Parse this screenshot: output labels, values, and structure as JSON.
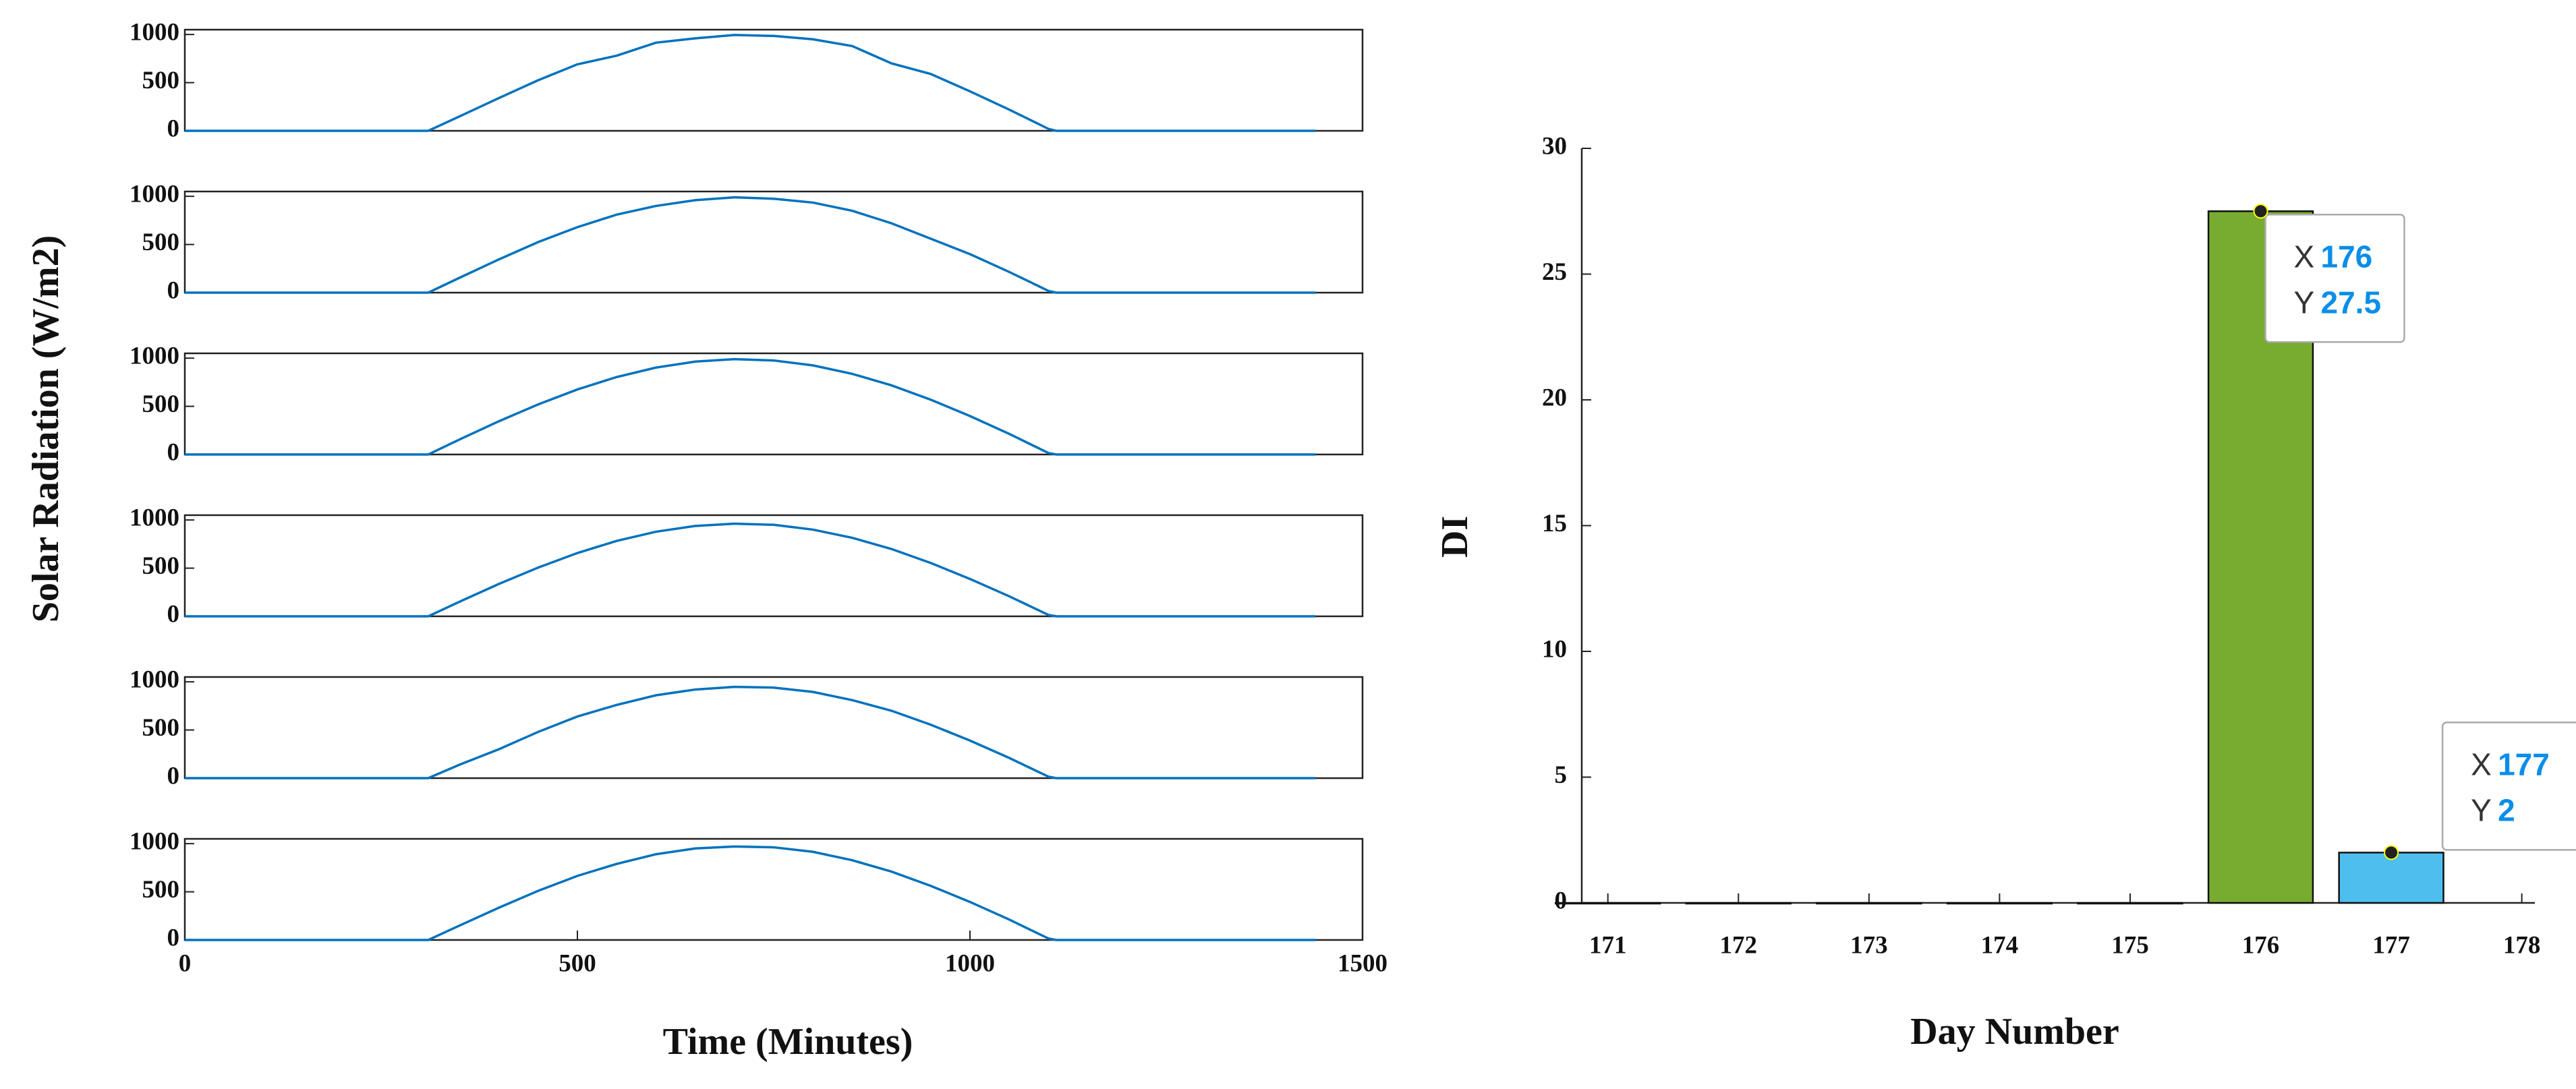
{
  "chart_data": [
    {
      "type": "line",
      "y_label": "Solar Radiation (W/m2)",
      "color": "#0072bd",
      "xlim": [
        0,
        1500
      ],
      "ylim": [
        0,
        1050
      ],
      "yticks": [
        0,
        500,
        1000
      ],
      "x": [
        0,
        100,
        200,
        300,
        310,
        350,
        400,
        450,
        500,
        550,
        600,
        650,
        700,
        750,
        800,
        850,
        900,
        950,
        1000,
        1050,
        1100,
        1110,
        1200,
        1300,
        1440
      ],
      "values": [
        0,
        0,
        0,
        0,
        0,
        150,
        340,
        525,
        690,
        780,
        915,
        960,
        995,
        985,
        950,
        880,
        700,
        590,
        410,
        220,
        20,
        0,
        0,
        0,
        0
      ]
    },
    {
      "type": "line",
      "color": "#0072bd",
      "xlim": [
        0,
        1500
      ],
      "ylim": [
        0,
        1050
      ],
      "yticks": [
        0,
        500,
        1000
      ],
      "x": [
        0,
        100,
        200,
        300,
        310,
        350,
        400,
        450,
        500,
        550,
        600,
        650,
        700,
        750,
        800,
        850,
        900,
        950,
        1000,
        1050,
        1100,
        1110,
        1200,
        1300,
        1440
      ],
      "values": [
        0,
        0,
        0,
        0,
        0,
        155,
        345,
        525,
        680,
        810,
        900,
        960,
        990,
        975,
        935,
        850,
        720,
        560,
        400,
        215,
        18,
        0,
        0,
        0,
        0
      ]
    },
    {
      "type": "line",
      "color": "#0072bd",
      "xlim": [
        0,
        1500
      ],
      "ylim": [
        0,
        1050
      ],
      "yticks": [
        0,
        500,
        1000
      ],
      "x": [
        0,
        100,
        200,
        300,
        310,
        350,
        400,
        450,
        500,
        550,
        600,
        650,
        700,
        750,
        800,
        850,
        900,
        950,
        1000,
        1050,
        1100,
        1110,
        1200,
        1300,
        1440
      ],
      "values": [
        0,
        0,
        0,
        0,
        0,
        156,
        345,
        520,
        675,
        804,
        902,
        964,
        990,
        976,
        925,
        837,
        718,
        569,
        399,
        214,
        15,
        0,
        0,
        0,
        0
      ]
    },
    {
      "type": "line",
      "color": "#0072bd",
      "xlim": [
        0,
        1500
      ],
      "ylim": [
        0,
        1050
      ],
      "yticks": [
        0,
        500,
        1000
      ],
      "x": [
        0,
        100,
        200,
        300,
        310,
        350,
        400,
        450,
        500,
        550,
        600,
        650,
        700,
        750,
        800,
        850,
        900,
        950,
        1000,
        1050,
        1100,
        1110,
        1200,
        1300,
        1440
      ],
      "values": [
        0,
        0,
        0,
        0,
        0,
        152,
        336,
        506,
        657,
        783,
        878,
        938,
        962,
        950,
        900,
        815,
        699,
        554,
        388,
        208,
        14,
        0,
        0,
        0,
        0
      ]
    },
    {
      "type": "line",
      "color": "#0072bd",
      "xlim": [
        0,
        1500
      ],
      "ylim": [
        0,
        1050
      ],
      "yticks": [
        0,
        500,
        1000
      ],
      "x": [
        0,
        100,
        200,
        300,
        310,
        350,
        400,
        450,
        500,
        550,
        600,
        650,
        700,
        750,
        800,
        850,
        900,
        950,
        1000,
        1050,
        1100,
        1110,
        1200,
        1300,
        1440
      ],
      "values": [
        0,
        0,
        0,
        0,
        0,
        140,
        300,
        480,
        640,
        760,
        860,
        920,
        948,
        940,
        895,
        810,
        700,
        555,
        390,
        210,
        15,
        0,
        0,
        0,
        0
      ]
    },
    {
      "type": "line",
      "x_label": "Time (Minutes)",
      "color": "#0072bd",
      "xlim": [
        0,
        1500
      ],
      "ylim": [
        0,
        1050
      ],
      "yticks": [
        0,
        500,
        1000
      ],
      "xticks": [
        0,
        500,
        1000,
        1500
      ],
      "x": [
        0,
        100,
        200,
        300,
        310,
        350,
        400,
        450,
        500,
        550,
        600,
        650,
        700,
        750,
        800,
        850,
        900,
        950,
        1000,
        1050,
        1100,
        1110,
        1200,
        1300,
        1440
      ],
      "values": [
        0,
        0,
        0,
        0,
        0,
        150,
        335,
        510,
        665,
        790,
        890,
        950,
        970,
        962,
        915,
        828,
        710,
        562,
        395,
        212,
        15,
        0,
        0,
        0,
        0
      ]
    },
    {
      "type": "bar",
      "x_label": "Day Number",
      "y_label": "DI",
      "x": [
        171,
        172,
        173,
        174,
        175,
        176,
        177
      ],
      "values": [
        0,
        0,
        0,
        0,
        0,
        27.5,
        2
      ],
      "colors": [
        "#77ac30",
        "#77ac30",
        "#77ac30",
        "#77ac30",
        "#77ac30",
        "#77ac30",
        "#4dbeee"
      ],
      "xlim": [
        170.8,
        178.1
      ],
      "xticks": [
        171,
        172,
        173,
        174,
        175,
        176,
        177,
        178
      ],
      "ylim": [
        0,
        30
      ],
      "yticks": [
        0,
        5,
        10,
        15,
        20,
        25,
        30
      ],
      "datatips": [
        {
          "x_label": "X",
          "x": 176,
          "y_label": "Y",
          "y": 27.5
        },
        {
          "x_label": "X",
          "x": 177,
          "y_label": "Y",
          "y": 2
        }
      ]
    }
  ]
}
